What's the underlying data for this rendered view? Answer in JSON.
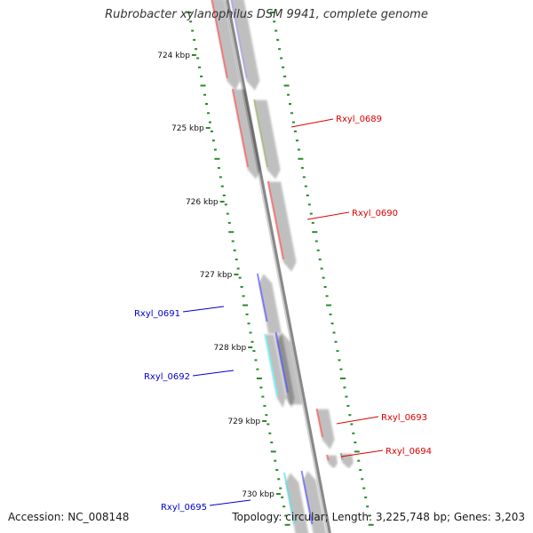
{
  "title": "Rubrobacter xylanophilus DSM 9941, complete genome",
  "footer": {
    "accession_label": "Accession:",
    "accession": "NC_008148",
    "topology_label": "Topology:",
    "topology": "circular",
    "length_label": "Length:",
    "length": "3,225,748 bp",
    "genes_label": "Genes:",
    "genes": "3,203"
  },
  "colors": {
    "backbone": "#888888",
    "tick": "#2a8a2a",
    "forward_label": "#dd0000",
    "reverse_label": "#0000cc"
  },
  "ruler": {
    "labels": [
      "724 kbp",
      "725 kbp",
      "726 kbp",
      "727 kbp",
      "728 kbp",
      "729 kbp",
      "730 kbp"
    ]
  },
  "genes": {
    "features": [
      {
        "strand": "reverse",
        "color": "#ff0000"
      },
      {
        "strand": "reverse",
        "color": "#7b68e0"
      },
      {
        "strand": "reverse",
        "color": "#ff0000"
      },
      {
        "strand": "reverse",
        "color": "#6b8e23"
      },
      {
        "strand": "reverse",
        "color": "#ff0000"
      },
      {
        "strand": "forward",
        "color": "#0000ff"
      },
      {
        "strand": "reverse",
        "color": "#00ffff"
      },
      {
        "strand": "reverse",
        "color": "#c8c8c8"
      },
      {
        "strand": "forward",
        "color": "#0000ff"
      },
      {
        "strand": "reverse",
        "color": "#ff0000"
      },
      {
        "strand": "reverse",
        "color": "#ff0000"
      },
      {
        "strand": "reverse",
        "color": "#555555"
      },
      {
        "strand": "forward",
        "color": "#00cccc"
      },
      {
        "strand": "forward",
        "color": "#0000ff"
      }
    ],
    "labels": [
      "Rxyl_0689",
      "Rxyl_0690",
      "Rxyl_0691",
      "Rxyl_0692",
      "Rxyl_0693",
      "Rxyl_0694",
      "Rxyl_0695"
    ]
  }
}
